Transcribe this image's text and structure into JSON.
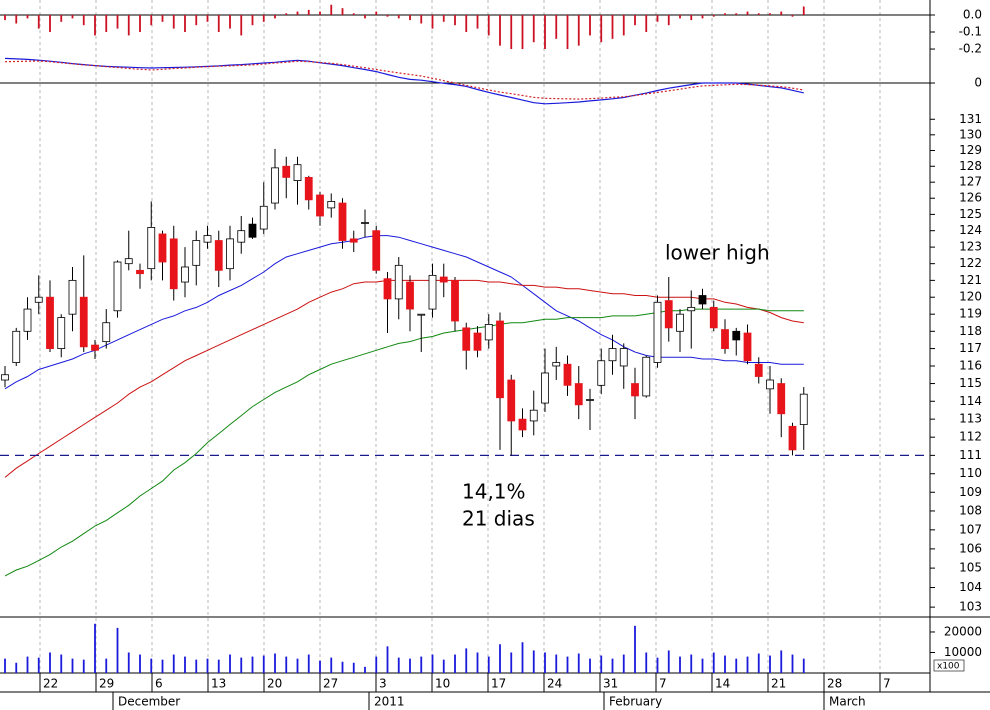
{
  "chart_data": [
    {
      "type": "bar",
      "color": "#cc1122",
      "values": [
        -0.03,
        -0.05,
        -0.02,
        -0.08,
        -0.1,
        -0.04,
        -0.02,
        -0.06,
        -0.12,
        -0.1,
        -0.08,
        -0.12,
        -0.1,
        -0.06,
        -0.04,
        -0.08,
        -0.1,
        -0.06,
        -0.04,
        -0.1,
        -0.08,
        -0.12,
        -0.06,
        -0.04,
        -0.02,
        0.01,
        0.02,
        0.03,
        0.02,
        0.06,
        0.04,
        0.01,
        -0.02,
        0.02,
        -0.01,
        -0.02,
        -0.03,
        -0.05,
        -0.08,
        -0.04,
        -0.06,
        -0.1,
        -0.08,
        -0.12,
        -0.18,
        -0.2,
        -0.2,
        -0.16,
        -0.2,
        -0.14,
        -0.2,
        -0.18,
        -0.12,
        -0.16,
        -0.14,
        -0.12,
        -0.06,
        -0.1,
        -0.04,
        -0.06,
        -0.02,
        -0.03,
        -0.02,
        -0.01,
        0.01,
        0.01,
        0.02,
        0.01,
        0.01,
        0.02,
        -0.01,
        0.05
      ],
      "ylim": [
        -0.235,
        0.088
      ],
      "yticks": [
        {
          "value": 0,
          "label": "0.0"
        },
        -0.1,
        -0.2
      ]
    },
    {
      "type": "line",
      "series": [
        {
          "color": "#1a1adc",
          "values": [
            0.95,
            0.93,
            0.91,
            0.88,
            0.84,
            0.8,
            0.75,
            0.71,
            0.67,
            0.64,
            0.62,
            0.61,
            0.59,
            0.58,
            0.59,
            0.6,
            0.61,
            0.62,
            0.64,
            0.66,
            0.69,
            0.71,
            0.74,
            0.77,
            0.8,
            0.84,
            0.87,
            0.84,
            0.78,
            0.73,
            0.67,
            0.59,
            0.52,
            0.44,
            0.33,
            0.22,
            0.14,
            0.11,
            0.05,
            -0.01,
            -0.06,
            -0.13,
            -0.25,
            -0.36,
            -0.46,
            -0.56,
            -0.66,
            -0.76,
            -0.8,
            -0.78,
            -0.76,
            -0.73,
            -0.69,
            -0.65,
            -0.61,
            -0.56,
            -0.47,
            -0.39,
            -0.29,
            -0.2,
            -0.13,
            -0.06,
            0,
            0,
            0,
            0,
            -0.04,
            -0.09,
            -0.14,
            -0.19,
            -0.28,
            -0.38
          ]
        },
        {
          "color": "#d02020",
          "dash": true,
          "values": [
            0.82,
            0.83,
            0.84,
            0.85,
            0.82,
            0.78,
            0.74,
            0.7,
            0.67,
            0.63,
            0.6,
            0.56,
            0.53,
            0.5,
            0.53,
            0.56,
            0.58,
            0.61,
            0.63,
            0.65,
            0.66,
            0.68,
            0.7,
            0.73,
            0.77,
            0.8,
            0.84,
            0.82,
            0.79,
            0.76,
            0.71,
            0.65,
            0.59,
            0.52,
            0.45,
            0.39,
            0.33,
            0.27,
            0.18,
            0.09,
            0,
            -0.09,
            -0.18,
            -0.27,
            -0.35,
            -0.41,
            -0.48,
            -0.55,
            -0.59,
            -0.6,
            -0.61,
            -0.62,
            -0.6,
            -0.58,
            -0.55,
            -0.53,
            -0.48,
            -0.42,
            -0.36,
            -0.3,
            -0.24,
            -0.17,
            -0.11,
            -0.09,
            -0.07,
            -0.05,
            -0.06,
            -0.08,
            -0.11,
            -0.14,
            -0.2,
            -0.27
          ]
        }
      ],
      "ylim": [
        -1.04,
        1.08
      ],
      "yticks": [
        0
      ]
    },
    {
      "type": "candlestick",
      "log": true,
      "up_color": "#ffffff",
      "down_color": "#e8141c",
      "black_color": "#000000",
      "black_candles": [
        22,
        62,
        65
      ],
      "candles": [
        [
          115.2,
          116,
          114.8,
          115.5
        ],
        [
          116.2,
          118.2,
          116,
          118
        ],
        [
          118,
          120,
          117.5,
          119.3
        ],
        [
          119.7,
          121.3,
          119,
          120
        ],
        [
          120,
          121,
          116.8,
          117
        ],
        [
          117,
          119,
          116.5,
          118.8
        ],
        [
          119,
          121.8,
          118,
          121
        ],
        [
          120,
          122.5,
          116.8,
          117.1
        ],
        [
          117.2,
          117.5,
          116.4,
          116.9
        ],
        [
          117.4,
          119.3,
          117,
          118.5
        ],
        [
          119.2,
          122.2,
          118.8,
          122.1
        ],
        [
          122,
          124,
          121.6,
          122.3
        ],
        [
          121.6,
          122,
          120.5,
          121.4
        ],
        [
          121.7,
          125.8,
          121,
          124.2
        ],
        [
          123.8,
          124,
          121,
          122.1
        ],
        [
          123.5,
          124.3,
          119.8,
          120.5
        ],
        [
          120.9,
          123,
          120,
          121.8
        ],
        [
          121.9,
          124,
          120.7,
          123.4
        ],
        [
          123.3,
          124.3,
          122.9,
          123.7
        ],
        [
          123.4,
          124,
          120.6,
          121.6
        ],
        [
          121.7,
          124.3,
          121,
          123.5
        ],
        [
          123.3,
          124.9,
          122.6,
          124
        ],
        [
          124.4,
          124.8,
          123.5,
          123.6
        ],
        [
          124.1,
          127,
          123.8,
          125.5
        ],
        [
          125.7,
          129.1,
          125.3,
          127.9
        ],
        [
          128,
          128.6,
          126,
          127.3
        ],
        [
          127.1,
          128.6,
          125.6,
          128.1
        ],
        [
          127.3,
          127.4,
          125.3,
          125.9
        ],
        [
          126.2,
          126.4,
          124.3,
          124.9
        ],
        [
          125.4,
          126.3,
          124.8,
          125.8
        ],
        [
          125.7,
          126,
          122.9,
          123.4
        ],
        [
          123.5,
          124,
          122.7,
          123.3
        ],
        [
          124.5,
          125.3,
          123.6,
          124.5
        ],
        [
          124,
          124.3,
          121.4,
          121.6
        ],
        [
          121.1,
          121.5,
          117.9,
          119.9
        ],
        [
          119.9,
          122.4,
          118.7,
          121.9
        ],
        [
          120.9,
          121.3,
          118,
          119.3
        ],
        [
          119,
          119,
          116.8,
          119
        ],
        [
          119.3,
          122,
          118.8,
          121.3
        ],
        [
          121.2,
          122,
          120,
          120.9
        ],
        [
          121,
          121.2,
          118,
          118.6
        ],
        [
          118.2,
          118.5,
          115.8,
          116.9
        ],
        [
          117.9,
          118.3,
          116.5,
          116.9
        ],
        [
          117.5,
          119,
          117,
          118.4
        ],
        [
          118.6,
          119.1,
          111.3,
          114.2
        ],
        [
          115.2,
          115.5,
          111,
          112.9
        ],
        [
          113,
          113.6,
          112,
          112.4
        ],
        [
          112.9,
          114.6,
          112.1,
          113.5
        ],
        [
          113.9,
          117,
          113.4,
          115.6
        ],
        [
          116,
          117.1,
          115.2,
          116.2
        ],
        [
          116.1,
          116.6,
          114.3,
          114.9
        ],
        [
          115,
          116,
          113,
          113.8
        ],
        [
          114.1,
          114.7,
          112.4,
          114.1
        ],
        [
          114.9,
          117,
          114.4,
          116.3
        ],
        [
          116.3,
          117.8,
          115.5,
          117
        ],
        [
          116,
          117.3,
          114.7,
          117
        ],
        [
          115,
          115.9,
          113,
          114.3
        ],
        [
          114.3,
          116.6,
          114.2,
          116.5
        ],
        [
          116.2,
          120.1,
          115.9,
          119.7
        ],
        [
          119.8,
          121.2,
          117.4,
          118.2
        ],
        [
          118,
          119.3,
          116.8,
          119
        ],
        [
          119.2,
          120.4,
          117,
          119.4
        ],
        [
          120.1,
          120.5,
          119.3,
          119.6
        ],
        [
          119.4,
          119.8,
          118,
          118.2
        ],
        [
          118.1,
          118.7,
          116.7,
          117
        ],
        [
          118,
          118.2,
          116.6,
          117.5
        ],
        [
          117.9,
          118.4,
          116.1,
          116.3
        ],
        [
          116.1,
          116.5,
          115,
          115.4
        ],
        [
          114.7,
          116,
          113.3,
          115.2
        ],
        [
          115,
          115.3,
          112,
          113.3
        ],
        [
          112.6,
          112.8,
          111,
          111.3
        ],
        [
          112.7,
          114.8,
          111.3,
          114.4
        ]
      ],
      "series": [
        {
          "color": "#1a1adc",
          "values": [
            114.7,
            115.1,
            115.4,
            115.8,
            116,
            116.2,
            116.4,
            116.7,
            116.9,
            117.2,
            117.5,
            117.8,
            118.1,
            118.4,
            118.7,
            118.9,
            119.2,
            119.4,
            119.7,
            120.1,
            120.4,
            120.7,
            121.1,
            121.5,
            122,
            122.4,
            122.6,
            122.8,
            123,
            123.2,
            123.3,
            123.4,
            123.6,
            123.7,
            123.7,
            123.6,
            123.4,
            123.2,
            123,
            122.8,
            122.6,
            122.4,
            122.1,
            121.8,
            121.5,
            121.2,
            120.7,
            120.2,
            119.7,
            119.2,
            118.9,
            118.6,
            118.2,
            117.8,
            117.5,
            117.1,
            116.8,
            116.6,
            116.5,
            116.5,
            116.5,
            116.5,
            116.4,
            116.4,
            116.3,
            116.3,
            116.2,
            116.2,
            116.2,
            116.1,
            116.1,
            116.1
          ]
        },
        {
          "color": "#cc1111",
          "values": [
            109.8,
            110.3,
            110.7,
            111.1,
            111.5,
            111.9,
            112.3,
            112.7,
            113.1,
            113.5,
            113.9,
            114.4,
            114.8,
            115.1,
            115.5,
            115.9,
            116.3,
            116.6,
            116.9,
            117.2,
            117.5,
            117.8,
            118.1,
            118.4,
            118.7,
            119,
            119.3,
            119.7,
            120,
            120.3,
            120.5,
            120.8,
            120.9,
            120.9,
            121,
            121,
            121,
            121,
            121,
            121,
            121,
            121,
            121,
            120.9,
            120.9,
            120.8,
            120.7,
            120.7,
            120.6,
            120.6,
            120.5,
            120.5,
            120.4,
            120.3,
            120.2,
            120.2,
            120.1,
            120.1,
            120,
            120,
            120,
            120,
            119.9,
            119.9,
            119.7,
            119.6,
            119.4,
            119.3,
            119.1,
            118.8,
            118.6,
            118.5
          ]
        },
        {
          "color": "#118811",
          "values": [
            104.6,
            104.9,
            105.1,
            105.4,
            105.7,
            106.1,
            106.4,
            106.8,
            107.2,
            107.5,
            107.9,
            108.3,
            108.8,
            109.2,
            109.6,
            110.2,
            110.6,
            111.1,
            111.7,
            112.2,
            112.7,
            113.2,
            113.7,
            114.1,
            114.5,
            114.8,
            115.1,
            115.5,
            115.8,
            116.1,
            116.3,
            116.5,
            116.7,
            116.9,
            117.1,
            117.3,
            117.4,
            117.6,
            117.7,
            117.9,
            118,
            118.1,
            118.2,
            118.3,
            118.4,
            118.5,
            118.5,
            118.6,
            118.7,
            118.7,
            118.8,
            118.8,
            118.8,
            118.8,
            118.9,
            118.9,
            118.9,
            119,
            119.1,
            119.2,
            119.2,
            119.3,
            119.3,
            119.3,
            119.3,
            119.3,
            119.3,
            119.3,
            119.2,
            119.2,
            119.2,
            119.2
          ]
        }
      ],
      "hline": 111,
      "hline_color": "#1a1a8c",
      "ylim": [
        102.5,
        131.6
      ],
      "yticks": [
        103,
        104,
        105,
        106,
        107,
        108,
        109,
        110,
        111,
        112,
        113,
        114,
        115,
        116,
        117,
        118,
        119,
        120,
        121,
        122,
        123,
        124,
        125,
        126,
        127,
        128,
        129,
        130,
        131
      ],
      "annotations": [
        "lower high",
        "14,1%",
        "21 dias"
      ],
      "annotation_color": "#1a1adc",
      "x_labels": [
        "22",
        "29",
        "6",
        "13",
        "20",
        "27",
        "3",
        "10",
        "17",
        "24",
        "31",
        "7",
        "14",
        "21",
        "28",
        "7"
      ],
      "months": [
        "December",
        "2011",
        "February",
        "March"
      ]
    },
    {
      "type": "bar",
      "color": "#1a1adc",
      "values": [
        7000,
        5000,
        8000,
        7500,
        10000,
        9000,
        7000,
        6500,
        24000,
        7000,
        22000,
        10000,
        9000,
        7000,
        6500,
        9000,
        8000,
        6500,
        7000,
        6500,
        9000,
        7500,
        8000,
        8500,
        9500,
        8000,
        7000,
        9000,
        6000,
        7500,
        5500,
        5000,
        3000,
        8000,
        13000,
        7500,
        7000,
        8000,
        9000,
        6500,
        9000,
        12000,
        10000,
        8000,
        14000,
        10000,
        15000,
        11000,
        10000,
        9000,
        8000,
        9500,
        7000,
        8500,
        7000,
        9000,
        23000,
        10000,
        7500,
        11000,
        8000,
        9000,
        7000,
        10000,
        8500,
        7000,
        8000,
        9500,
        8500,
        11000,
        9000,
        7000
      ],
      "ylim": [
        0,
        27300
      ],
      "yticks": [
        10000,
        20000
      ],
      "unit_label": "x100"
    }
  ]
}
